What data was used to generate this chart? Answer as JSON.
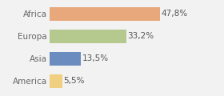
{
  "categories": [
    "Africa",
    "Europa",
    "Asia",
    "America"
  ],
  "values": [
    47.8,
    33.2,
    13.5,
    5.5
  ],
  "labels": [
    "47,8%",
    "33,2%",
    "13,5%",
    "5,5%"
  ],
  "bar_colors": [
    "#e8a87c",
    "#b5c98e",
    "#6b8cbf",
    "#f0d080"
  ],
  "background_color": "#f2f2f2",
  "xlim": [
    0,
    58
  ],
  "bar_height": 0.62,
  "label_fontsize": 7.5,
  "tick_fontsize": 7.5,
  "label_color": "#555555",
  "tick_color": "#666666"
}
